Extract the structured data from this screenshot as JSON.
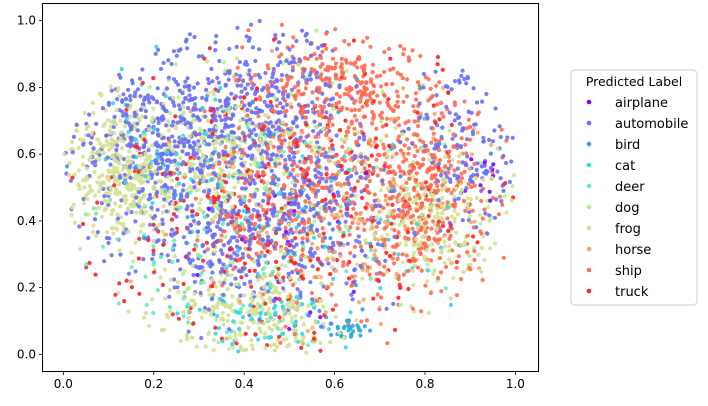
{
  "chart_data": {
    "type": "scatter",
    "title": "",
    "xlabel": "",
    "ylabel": "",
    "xlim": [
      -0.045,
      1.05
    ],
    "ylim": [
      -0.05,
      1.05
    ],
    "x_ticks": [
      0.0,
      0.2,
      0.4,
      0.6,
      0.8,
      1.0
    ],
    "y_ticks": [
      0.0,
      0.2,
      0.4,
      0.6,
      0.8,
      1.0
    ],
    "x_tick_labels": [
      "0.0",
      "0.2",
      "0.4",
      "0.6",
      "0.8",
      "1.0"
    ],
    "y_tick_labels": [
      "0.0",
      "0.2",
      "0.4",
      "0.6",
      "0.8",
      "1.0"
    ],
    "grid": false,
    "legend": {
      "title": "Predicted Label",
      "placement": "center-right outside"
    },
    "series": [
      {
        "name": "airplane",
        "color": "#8000ff",
        "count": 30,
        "clusters": [
          {
            "c": [
              0.93,
              0.52
            ],
            "s": [
              0.05,
              0.05
            ],
            "w": 0.4
          },
          {
            "c": [
              0.52,
              0.35
            ],
            "s": [
              0.12,
              0.15
            ],
            "w": 0.6
          }
        ]
      },
      {
        "name": "automobile",
        "color": "#6a6ff6",
        "count": 1500,
        "clusters": [
          {
            "c": [
              0.2,
              0.62
            ],
            "s": [
              0.09,
              0.14
            ],
            "w": 0.28
          },
          {
            "c": [
              0.43,
              0.72
            ],
            "s": [
              0.1,
              0.15
            ],
            "w": 0.3
          },
          {
            "c": [
              0.4,
              0.35
            ],
            "s": [
              0.09,
              0.1
            ],
            "w": 0.22
          },
          {
            "c": [
              0.88,
              0.62
            ],
            "s": [
              0.06,
              0.12
            ],
            "w": 0.1
          },
          {
            "c": [
              0.58,
              0.45
            ],
            "s": [
              0.08,
              0.15
            ],
            "w": 0.1
          }
        ]
      },
      {
        "name": "bird",
        "color": "#2ea8dd",
        "count": 60,
        "clusters": [
          {
            "c": [
              0.63,
              0.08
            ],
            "s": [
              0.02,
              0.02
            ],
            "w": 0.5
          },
          {
            "c": [
              0.45,
              0.5
            ],
            "s": [
              0.18,
              0.2
            ],
            "w": 0.5
          }
        ]
      },
      {
        "name": "cat",
        "color": "#35d6e6",
        "count": 160,
        "clusters": [
          {
            "c": [
              0.45,
              0.1
            ],
            "s": [
              0.07,
              0.05
            ],
            "w": 0.4
          },
          {
            "c": [
              0.2,
              0.65
            ],
            "s": [
              0.08,
              0.12
            ],
            "w": 0.3
          },
          {
            "c": [
              0.6,
              0.4
            ],
            "s": [
              0.15,
              0.15
            ],
            "w": 0.3
          }
        ]
      },
      {
        "name": "deer",
        "color": "#6aecb5",
        "count": 120,
        "clusters": [
          {
            "c": [
              0.35,
              0.3
            ],
            "s": [
              0.15,
              0.18
            ],
            "w": 1.0
          }
        ]
      },
      {
        "name": "dog",
        "color": "#aef58b",
        "count": 140,
        "clusters": [
          {
            "c": [
              0.55,
              0.55
            ],
            "s": [
              0.18,
              0.18
            ],
            "w": 1.0
          }
        ]
      },
      {
        "name": "frog",
        "color": "#d4e192",
        "count": 1100,
        "clusters": [
          {
            "c": [
              0.13,
              0.55
            ],
            "s": [
              0.07,
              0.1
            ],
            "w": 0.35
          },
          {
            "c": [
              0.4,
              0.12
            ],
            "s": [
              0.1,
              0.07
            ],
            "w": 0.25
          },
          {
            "c": [
              0.35,
              0.62
            ],
            "s": [
              0.08,
              0.1
            ],
            "w": 0.2
          },
          {
            "c": [
              0.82,
              0.4
            ],
            "s": [
              0.07,
              0.1
            ],
            "w": 0.2
          }
        ]
      },
      {
        "name": "horse",
        "color": "#f3a86a",
        "count": 200,
        "clusters": [
          {
            "c": [
              0.6,
              0.45
            ],
            "s": [
              0.15,
              0.2
            ],
            "w": 1.0
          }
        ]
      },
      {
        "name": "ship",
        "color": "#ff6b50",
        "count": 1000,
        "clusters": [
          {
            "c": [
              0.78,
              0.48
            ],
            "s": [
              0.08,
              0.16
            ],
            "w": 0.45
          },
          {
            "c": [
              0.62,
              0.8
            ],
            "s": [
              0.1,
              0.08
            ],
            "w": 0.25
          },
          {
            "c": [
              0.5,
              0.48
            ],
            "s": [
              0.1,
              0.15
            ],
            "w": 0.3
          }
        ]
      },
      {
        "name": "truck",
        "color": "#ff2020",
        "count": 320,
        "clusters": [
          {
            "c": [
              0.5,
              0.45
            ],
            "s": [
              0.25,
              0.25
            ],
            "w": 1.0
          }
        ]
      }
    ],
    "note_density": "Points drawn from per-class cluster distributions estimated from the image."
  }
}
